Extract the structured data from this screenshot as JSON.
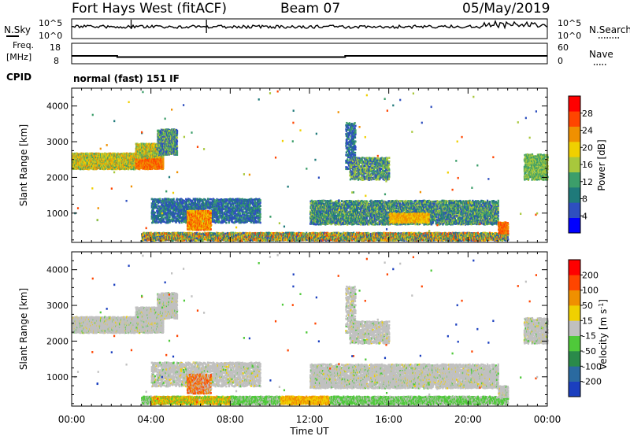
{
  "header": {
    "radar": "Fort Hays West (fitACF)",
    "beam": "Beam 07",
    "date": "05/May/2019"
  },
  "nsky_panel": {
    "left_label": "N.Sky",
    "right_label": "N.Search",
    "left_ticks": [
      "10^5",
      "10^0"
    ],
    "right_ticks": [
      "10^5",
      "10^0"
    ]
  },
  "freq_panel": {
    "left_label_1": "Freq.",
    "left_label_2": "[MHz]",
    "left_ticks": [
      "18",
      "8"
    ],
    "right_label": "Nave",
    "right_ticks": [
      "60",
      "0"
    ],
    "cpid_label": "CPID"
  },
  "mode_text": "normal (fast) 151 IF",
  "axis": {
    "ylabel": "Slant Range [km]",
    "xlabel": "Time UT",
    "yticks": [
      "4000",
      "3000",
      "2000",
      "1000"
    ],
    "ytick_values": [
      4000,
      3000,
      2000,
      1000
    ],
    "xticks": [
      "00:00",
      "04:00",
      "08:00",
      "12:00",
      "16:00",
      "20:00",
      "00:00"
    ],
    "xtick_hours": [
      0,
      4,
      8,
      12,
      16,
      20,
      24
    ],
    "xlim_hours": [
      0,
      24
    ],
    "ylim_km": [
      180,
      4500
    ]
  },
  "chart_data": [
    {
      "type": "heatmap",
      "title": "",
      "xlabel": "",
      "ylabel": "Slant Range [km]",
      "colorbar_label": "Power [dB]",
      "colorbar_ticks": [
        "28",
        "24",
        "20",
        "16",
        "12",
        "8",
        "4"
      ],
      "colorbar_tick_values": [
        28,
        24,
        20,
        16,
        12,
        8,
        4
      ],
      "colorbar_range": [
        0,
        32
      ],
      "colorbar_colors": [
        "#0000ff",
        "#2e4fbf",
        "#1f7a7a",
        "#3c9e6a",
        "#a8c83c",
        "#f0d000",
        "#f09000",
        "#ff4500",
        "#ff0000"
      ]
    },
    {
      "type": "heatmap",
      "title": "",
      "xlabel": "Time UT",
      "ylabel": "Slant Range [km]",
      "colorbar_label": "Velocity [m s^-1]",
      "colorbar_ticks": [
        "200",
        "100",
        "50",
        "15",
        "-15",
        "-50",
        "-100",
        "-200"
      ],
      "colorbar_colors": [
        "#1b3fbf",
        "#2a6aa0",
        "#2a8a4a",
        "#4fc93a",
        "#c0c0c0",
        "#f0d000",
        "#f09000",
        "#ff4500",
        "#ff0000"
      ]
    }
  ]
}
